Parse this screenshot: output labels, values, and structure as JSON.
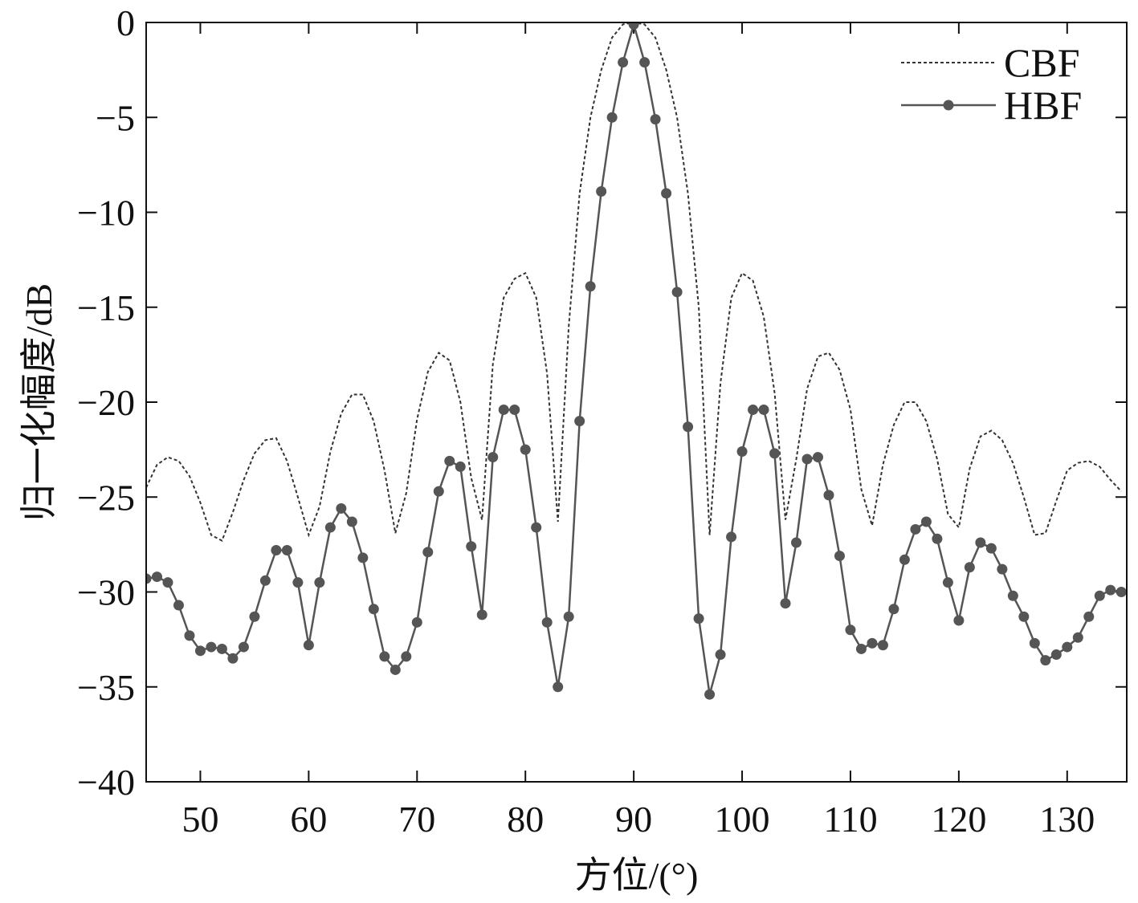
{
  "chart_data": {
    "type": "line",
    "title": "",
    "xlabel": "方位/(°)",
    "ylabel": "归一化幅度/dB",
    "xlim": [
      45,
      135.5
    ],
    "ylim": [
      -40,
      0
    ],
    "xticks": [
      50,
      60,
      70,
      80,
      90,
      100,
      110,
      120,
      130
    ],
    "yticks": [
      0,
      -5,
      -10,
      -15,
      -20,
      -25,
      -30,
      -35,
      -40
    ],
    "xtick_labels": [
      "50",
      "60",
      "70",
      "80",
      "90",
      "100",
      "110",
      "120",
      "130"
    ],
    "ytick_labels": [
      "0",
      "−5",
      "−10",
      "−15",
      "−20",
      "−25",
      "−30",
      "−35",
      "−40"
    ],
    "grid": false,
    "legend_position": "top-right",
    "series": [
      {
        "name": "CBF",
        "style": "dotted",
        "color": "#333333",
        "x": [
          45,
          46,
          47,
          48,
          49,
          50,
          51,
          52,
          53,
          54,
          55,
          56,
          57,
          58,
          59,
          60,
          61,
          62,
          63,
          64,
          65,
          66,
          67,
          68,
          69,
          70,
          71,
          72,
          73,
          74,
          75,
          76,
          77,
          78,
          79,
          80,
          81,
          82,
          83,
          84,
          85,
          86,
          87,
          88,
          89,
          90,
          91,
          92,
          93,
          94,
          95,
          96,
          97,
          98,
          99,
          100,
          101,
          102,
          103,
          104,
          105,
          106,
          107,
          108,
          109,
          110,
          111,
          112,
          113,
          114,
          115,
          116,
          117,
          118,
          119,
          120,
          121,
          122,
          123,
          124,
          125,
          126,
          127,
          128,
          129,
          130,
          131,
          132,
          133,
          134,
          135
        ],
        "y": [
          -24.5,
          -23.3,
          -22.9,
          -23.1,
          -23.9,
          -25.3,
          -27.0,
          -27.3,
          -25.8,
          -24.1,
          -22.7,
          -22.0,
          -21.9,
          -23.1,
          -25.0,
          -27.0,
          -25.5,
          -22.6,
          -20.6,
          -19.6,
          -19.6,
          -21.0,
          -23.6,
          -26.9,
          -24.8,
          -20.9,
          -18.4,
          -17.4,
          -17.8,
          -20.0,
          -24.0,
          -26.2,
          -18.0,
          -14.5,
          -13.5,
          -13.2,
          -14.5,
          -18.5,
          -26.3,
          -16.0,
          -9.0,
          -5.0,
          -2.5,
          -0.8,
          -0.1,
          0.0,
          -0.1,
          -0.8,
          -2.5,
          -5.0,
          -9.0,
          -15.0,
          -27.0,
          -19.0,
          -14.5,
          -13.2,
          -13.6,
          -15.5,
          -19.5,
          -26.2,
          -23.0,
          -19.3,
          -17.6,
          -17.4,
          -18.3,
          -20.4,
          -24.6,
          -26.5,
          -23.3,
          -21.2,
          -20.0,
          -20.0,
          -21.0,
          -23.0,
          -25.9,
          -26.6,
          -23.5,
          -21.8,
          -21.5,
          -22.0,
          -23.2,
          -25.0,
          -27.0,
          -26.9,
          -25.2,
          -23.6,
          -23.2,
          -23.1,
          -23.4,
          -24.1,
          -24.7
        ]
      },
      {
        "name": "HBF",
        "style": "solid-markers",
        "color": "#555555",
        "x": [
          45,
          46,
          47,
          48,
          49,
          50,
          51,
          52,
          53,
          54,
          55,
          56,
          57,
          58,
          59,
          60,
          61,
          62,
          63,
          64,
          65,
          66,
          67,
          68,
          69,
          70,
          71,
          72,
          73,
          74,
          75,
          76,
          77,
          78,
          79,
          80,
          81,
          82,
          83,
          84,
          85,
          86,
          87,
          88,
          89,
          90,
          91,
          92,
          93,
          94,
          95,
          96,
          97,
          98,
          99,
          100,
          101,
          102,
          103,
          104,
          105,
          106,
          107,
          108,
          109,
          110,
          111,
          112,
          113,
          114,
          115,
          116,
          117,
          118,
          119,
          120,
          121,
          122,
          123,
          124,
          125,
          126,
          127,
          128,
          129,
          130,
          131,
          132,
          133,
          134,
          135
        ],
        "y": [
          -29.3,
          -29.2,
          -29.5,
          -30.7,
          -32.3,
          -33.1,
          -32.9,
          -33.0,
          -33.5,
          -32.9,
          -31.3,
          -29.4,
          -27.8,
          -27.8,
          -29.5,
          -32.8,
          -29.5,
          -26.6,
          -25.6,
          -26.3,
          -28.2,
          -30.9,
          -33.4,
          -34.1,
          -33.4,
          -31.6,
          -27.9,
          -24.7,
          -23.1,
          -23.4,
          -27.6,
          -31.2,
          -22.9,
          -20.4,
          -20.4,
          -22.5,
          -26.6,
          -31.6,
          -35.0,
          -31.3,
          -21.0,
          -13.9,
          -8.9,
          -5.0,
          -2.1,
          -0.1,
          -2.1,
          -5.1,
          -9.0,
          -14.2,
          -21.3,
          -31.4,
          -35.4,
          -33.3,
          -27.1,
          -22.6,
          -20.4,
          -20.4,
          -22.7,
          -30.6,
          -27.4,
          -23.0,
          -22.9,
          -24.9,
          -28.1,
          -32.0,
          -33.0,
          -32.7,
          -32.8,
          -30.9,
          -28.3,
          -26.7,
          -26.3,
          -27.2,
          -29.5,
          -31.5,
          -28.7,
          -27.4,
          -27.7,
          -28.8,
          -30.2,
          -31.3,
          -32.7,
          -33.6,
          -33.3,
          -32.9,
          -32.4,
          -31.3,
          -30.2,
          -29.9,
          -30.0
        ]
      }
    ]
  }
}
